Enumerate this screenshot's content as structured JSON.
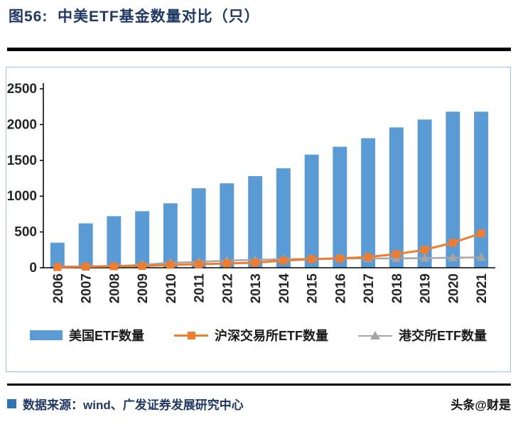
{
  "header": {
    "title": "图56:  中美ETF基金数量对比（只）"
  },
  "chart_data": {
    "type": "bar",
    "title": "中美ETF基金数量对比（只）",
    "categories": [
      "2006",
      "2007",
      "2008",
      "2009",
      "2010",
      "2011",
      "2012",
      "2013",
      "2014",
      "2015",
      "2016",
      "2017",
      "2018",
      "2019",
      "2020",
      "2021"
    ],
    "series": [
      {
        "name": "美国ETF数量",
        "type": "bar",
        "marker": "rect",
        "color": "#5B9BD5",
        "values": [
          350,
          620,
          720,
          790,
          900,
          1110,
          1180,
          1280,
          1390,
          1580,
          1690,
          1810,
          1960,
          2070,
          2180,
          2180
        ]
      },
      {
        "name": "沪深交易所ETF数量",
        "type": "line",
        "marker": "square",
        "color": "#ED7D31",
        "values": [
          10,
          15,
          20,
          25,
          40,
          50,
          60,
          70,
          100,
          120,
          130,
          150,
          190,
          250,
          350,
          480
        ]
      },
      {
        "name": "港交所ETF数量",
        "type": "line",
        "marker": "triangle",
        "color": "#A5A5A5",
        "values": [
          15,
          20,
          25,
          40,
          70,
          80,
          100,
          110,
          120,
          125,
          130,
          130,
          130,
          135,
          140,
          145
        ]
      }
    ],
    "xlabel": "",
    "ylabel": "",
    "ylim": [
      0,
      2500
    ],
    "yticks": [
      0,
      500,
      1000,
      1500,
      2000,
      2500
    ],
    "grid": false,
    "legend_position": "bottom",
    "axis_color": "#000000",
    "tick_label_color": "#262626"
  },
  "footer": {
    "source": "数据来源：wind、广发证券发展研究中心",
    "watermark": "头条@财是"
  }
}
